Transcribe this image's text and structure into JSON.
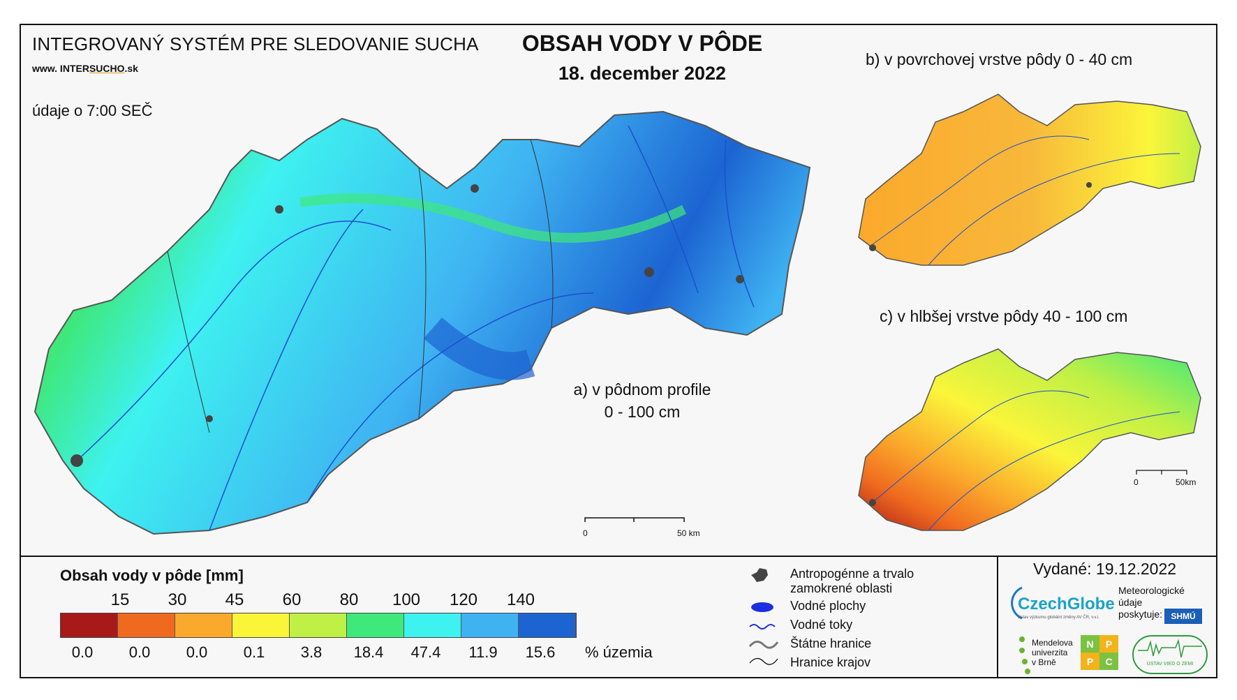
{
  "header": {
    "system_title": "INTEGROVANÝ SYSTÉM PRE SLEDOVANIE SUCHA",
    "url_prefix": "www. INTER",
    "url_underlined": "SUCHO",
    "url_suffix": ".sk",
    "time_note": "údaje o 7:00 SEČ",
    "map_title": "OBSAH VODY V PÔDE",
    "map_date": "18. december 2022"
  },
  "maps": {
    "a_label_line1": "a) v pôdnom profile",
    "a_label_line2": "0 - 100 cm",
    "b_label": "b) v povrchovej vrstve pôdy 0 - 40 cm",
    "c_label": "c) v hlbšej vrstve pôdy 40 - 100 cm",
    "scale_main_zero": "0",
    "scale_main_end": "50 km",
    "scale_small_zero": "0",
    "scale_small_end": "50km"
  },
  "legend": {
    "title": "Obsah vody v pôde  [mm]",
    "thresholds": [
      "15",
      "30",
      "45",
      "60",
      "80",
      "100",
      "120",
      "140"
    ],
    "classes": [
      {
        "color": "#a81a1a",
        "percent": "0.0"
      },
      {
        "color": "#ef6a1e",
        "percent": "0.0"
      },
      {
        "color": "#fba92c",
        "percent": "0.0"
      },
      {
        "color": "#fbf53a",
        "percent": "0.1"
      },
      {
        "color": "#bff046",
        "percent": "3.8"
      },
      {
        "color": "#3ee87a",
        "percent": "18.4"
      },
      {
        "color": "#3ef2f0",
        "percent": "47.4"
      },
      {
        "color": "#3fb3f2",
        "percent": "11.9"
      },
      {
        "color": "#1c64d2",
        "percent": "15.6"
      }
    ],
    "percent_unit": "% územia"
  },
  "symbols": {
    "urban": "Antropogénne a trvalo zamokrené oblasti",
    "water_bodies": "Vodné plochy",
    "rivers": "Vodné toky",
    "state_border": "Štátne hranice",
    "regions": "Hranice krajov"
  },
  "footer": {
    "issued": "Vydané: 19.12.2022",
    "czechglobe": "CzechGlobe",
    "czechglobe_sub": "Ústav výzkumu globální změny AV ČR, v.v.i.",
    "meteo_line1": "Meteorologické",
    "meteo_line2": "údaje",
    "meteo_line3": "poskytuje:",
    "shmu": "SHMÚ",
    "mendel_line1": "Mendelova",
    "mendel_line2": "univerzita",
    "mendel_line3": "v Brně",
    "nppc": [
      "N",
      "P",
      "P",
      "C"
    ],
    "uvz": "ÚSTAV VIED O ZEMI"
  }
}
